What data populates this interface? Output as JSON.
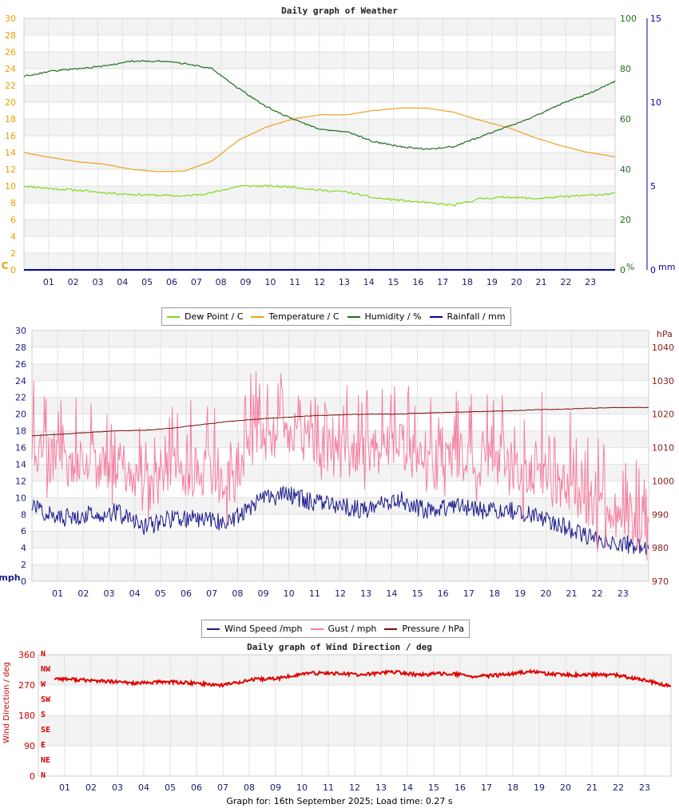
{
  "chart_data": [
    {
      "type": "line",
      "title": "Daily graph of Weather",
      "x": [
        "01",
        "02",
        "03",
        "04",
        "05",
        "06",
        "07",
        "08",
        "09",
        "10",
        "11",
        "12",
        "13",
        "14",
        "15",
        "16",
        "17",
        "18",
        "19",
        "20",
        "21",
        "22",
        "23"
      ],
      "xlabel": "",
      "y_left": {
        "label": "C",
        "range": [
          0,
          30
        ],
        "ticks": [
          "0",
          "2",
          "4",
          "6",
          "8",
          "10",
          "12",
          "14",
          "16",
          "18",
          "20",
          "22",
          "24",
          "26",
          "28",
          "30"
        ],
        "color": "#e8a000"
      },
      "y_right1": {
        "label": "%",
        "range": [
          0,
          100
        ],
        "ticks": [
          "0",
          "20",
          "40",
          "60",
          "80",
          "100"
        ],
        "color": "#1e6e1e"
      },
      "y_right2": {
        "label": "mm",
        "range": [
          0,
          15
        ],
        "ticks": [
          "0",
          "5",
          "10",
          "15"
        ],
        "color": "#0000aa"
      },
      "series": [
        {
          "name": "Dew Point / C",
          "axis": "left",
          "color": "#7fdc1e",
          "values": [
            10.0,
            9.7,
            9.5,
            9.2,
            9.0,
            8.9,
            8.8,
            9.2,
            10.0,
            10.0,
            9.9,
            9.5,
            9.3,
            8.6,
            8.3,
            8.0,
            7.7,
            8.5,
            8.7,
            8.5,
            8.7,
            8.9,
            9.1
          ]
        },
        {
          "name": "Temperature / C",
          "axis": "left",
          "color": "#f0a020",
          "values": [
            14.0,
            13.4,
            12.9,
            12.6,
            12.0,
            11.7,
            11.8,
            13.0,
            15.5,
            17.0,
            18.0,
            18.5,
            18.5,
            19.0,
            19.3,
            19.3,
            18.8,
            17.8,
            17.0,
            15.8,
            14.8,
            14.0,
            13.5
          ]
        },
        {
          "name": "Humidity / %",
          "axis": "right1",
          "color": "#1e6e1e",
          "values": [
            77,
            79,
            80,
            81,
            83,
            83,
            82,
            80,
            72,
            65,
            60,
            56,
            55,
            51,
            49,
            48,
            49,
            53,
            57,
            61,
            66,
            70,
            75
          ]
        },
        {
          "name": "Rainfall / mm",
          "axis": "right2",
          "color": "#0000aa",
          "values": [
            0,
            0,
            0,
            0,
            0,
            0,
            0,
            0,
            0,
            0,
            0,
            0,
            0,
            0,
            0,
            0,
            0,
            0,
            0,
            0,
            0,
            0,
            0
          ]
        }
      ]
    },
    {
      "type": "line",
      "title": "",
      "x": [
        "01",
        "02",
        "03",
        "04",
        "05",
        "06",
        "07",
        "08",
        "09",
        "10",
        "11",
        "12",
        "13",
        "14",
        "15",
        "16",
        "17",
        "18",
        "19",
        "20",
        "21",
        "22",
        "23"
      ],
      "y_left": {
        "label": "mph",
        "range": [
          0,
          30
        ],
        "ticks": [
          "0",
          "2",
          "4",
          "6",
          "8",
          "10",
          "12",
          "14",
          "16",
          "18",
          "20",
          "22",
          "24",
          "26",
          "28",
          "30"
        ],
        "color": "#1a1a8c"
      },
      "y_right": {
        "label": "hPa",
        "range": [
          970,
          1045
        ],
        "ticks": [
          "970",
          "980",
          "990",
          "1000",
          "1010",
          "1020",
          "1030",
          "1040"
        ],
        "color": "#8b1a1a"
      },
      "series": [
        {
          "name": "Wind Speed /mph",
          "axis": "left",
          "color": "#1a1a8c",
          "values": [
            9.0,
            7.5,
            8.0,
            8.3,
            6.5,
            7.5,
            7.5,
            7.0,
            9.5,
            10.5,
            9.5,
            9.0,
            8.5,
            10.0,
            8.5,
            9.0,
            8.5,
            8.5,
            8.0,
            6.5,
            5.0,
            4.5,
            4.0
          ]
        },
        {
          "name": "Gust / mph",
          "axis": "left",
          "color": "#f47fa0",
          "values": [
            16,
            14,
            14,
            14,
            11,
            13,
            13,
            12,
            17,
            18,
            17,
            15,
            15,
            17,
            14,
            15,
            14,
            14,
            13,
            11,
            9,
            8,
            7
          ]
        },
        {
          "name": "Pressure / hPa",
          "axis": "right",
          "color": "#7a0a0a",
          "values": [
            1013.5,
            1014.0,
            1014.5,
            1015.0,
            1015.2,
            1015.8,
            1016.8,
            1017.8,
            1018.5,
            1019.0,
            1019.5,
            1019.8,
            1020.0,
            1020.0,
            1020.3,
            1020.6,
            1020.8,
            1021.0,
            1021.3,
            1021.5,
            1021.8,
            1022.0,
            1022.0
          ]
        }
      ]
    },
    {
      "type": "scatter",
      "title": "Daily graph of Wind Direction / deg",
      "x": [
        "01",
        "02",
        "03",
        "04",
        "05",
        "06",
        "07",
        "08",
        "09",
        "10",
        "11",
        "12",
        "13",
        "14",
        "15",
        "16",
        "17",
        "18",
        "19",
        "20",
        "21",
        "22",
        "23"
      ],
      "ylabel": "Wind Direction / deg",
      "ylim": [
        0,
        360
      ],
      "y_ticks": [
        "0",
        "90",
        "180",
        "270",
        "360"
      ],
      "compass_labels": [
        "N",
        "NE",
        "E",
        "SE",
        "S",
        "SW",
        "W",
        "NW",
        "N"
      ],
      "series": [
        {
          "name": "Wind Direction",
          "color": "#e00000",
          "values": [
            290,
            285,
            280,
            275,
            280,
            275,
            270,
            285,
            290,
            305,
            305,
            300,
            310,
            300,
            305,
            295,
            300,
            310,
            300,
            300,
            300,
            285,
            265
          ]
        }
      ]
    }
  ],
  "legend_top": [
    "Dew Point / C",
    "Temperature / C",
    "Humidity / %",
    "Rainfall / mm"
  ],
  "legend_mid": [
    "Wind Speed /mph",
    "Gust / mph",
    "Pressure / hPa"
  ],
  "footer": "Graph for: 16th September 2025; Load time: 0.27 s"
}
